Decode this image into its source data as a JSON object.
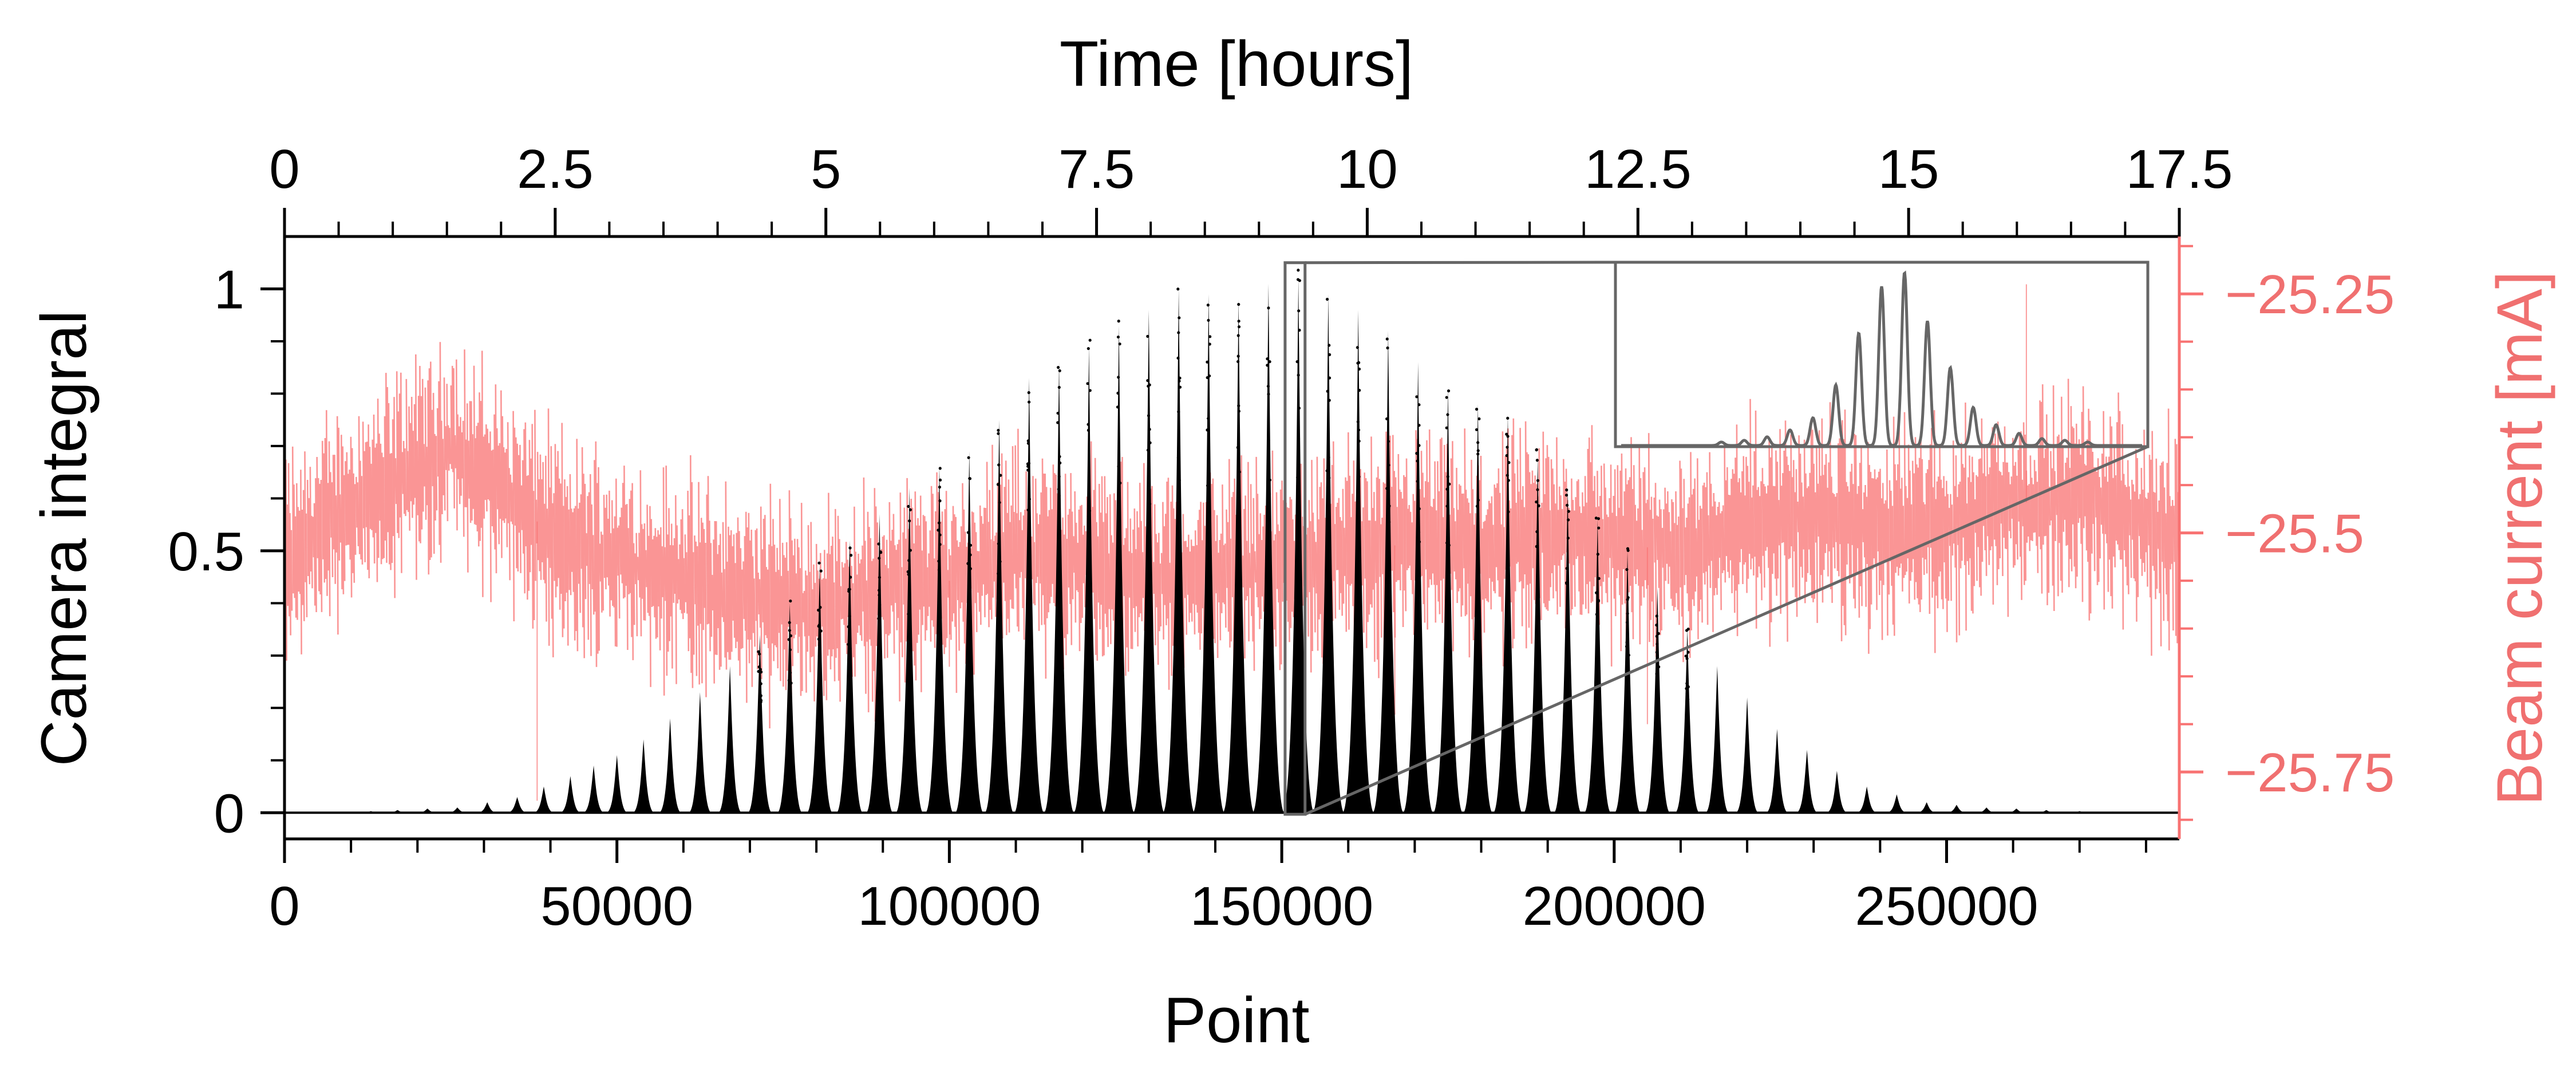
{
  "chart_data": {
    "type": "scatter",
    "xlabel": "Point",
    "ylabel": "Camera integral",
    "top_xlabel": "Time [hours]",
    "right_ylabel": "Beam current [mA]",
    "xlim": [
      0,
      285000
    ],
    "ylim": [
      -0.05,
      1.1
    ],
    "top_xlim": [
      0,
      17.5
    ],
    "right_ylim": [
      -25.82,
      -25.19
    ],
    "x_ticks": [
      "0",
      "50000",
      "100000",
      "150000",
      "200000",
      "250000"
    ],
    "y_ticks": [
      "0",
      "0.5",
      "1"
    ],
    "top_x_ticks": [
      "0",
      "2.5",
      "5",
      "7.5",
      "10",
      "12.5",
      "15",
      "17.5"
    ],
    "right_y_ticks": [
      "−25.25",
      "−25.5",
      "−25.75"
    ],
    "colors": {
      "camera": "#000000",
      "beam": "#f87272",
      "inset": "#666666"
    },
    "series": [
      {
        "name": "Camera integral",
        "description_points": "fringe peaks (x = point, y = peak camera integral)",
        "x": [
          4000,
          8500,
          13000,
          17000,
          21500,
          26000,
          30500,
          35000,
          39000,
          43000,
          46500,
          50000,
          54000,
          58000,
          62500,
          67000,
          71500,
          76000,
          80500,
          85000,
          89500,
          94000,
          98500,
          103000,
          107500,
          112000,
          116500,
          121000,
          125500,
          130000,
          134500,
          139000,
          143500,
          148000,
          152500,
          157000,
          161500,
          166000,
          170500,
          175000,
          179500,
          184000,
          188500,
          193000,
          197500,
          202000,
          206500,
          211000,
          215500,
          220000,
          224500,
          229000,
          233500,
          238000,
          242500,
          247000,
          251500,
          256000,
          260500,
          265000,
          270000,
          275000
        ],
        "y": [
          0.0,
          0.0,
          0.003,
          0.005,
          0.008,
          0.01,
          0.02,
          0.03,
          0.05,
          0.07,
          0.09,
          0.11,
          0.14,
          0.18,
          0.23,
          0.28,
          0.34,
          0.4,
          0.47,
          0.52,
          0.57,
          0.62,
          0.66,
          0.69,
          0.75,
          0.83,
          0.86,
          0.89,
          0.93,
          0.96,
          1.0,
          0.99,
          0.98,
          1.01,
          1.02,
          0.99,
          0.96,
          0.92,
          0.86,
          0.81,
          0.78,
          0.76,
          0.68,
          0.62,
          0.56,
          0.5,
          0.43,
          0.35,
          0.28,
          0.22,
          0.16,
          0.12,
          0.08,
          0.05,
          0.035,
          0.02,
          0.015,
          0.01,
          0.008,
          0.005,
          0.003,
          0.002
        ]
      },
      {
        "name": "Beam current",
        "x": [
          0,
          10000,
          20000,
          25000,
          30000,
          40000,
          50000,
          60000,
          70000,
          80000,
          90000,
          100000,
          110000,
          120000,
          130000,
          140000,
          150000,
          160000,
          170000,
          180000,
          190000,
          200000,
          210000,
          220000,
          230000,
          240000,
          250000,
          260000,
          270000,
          280000,
          285000
        ],
        "y": [
          -25.53,
          -25.47,
          -25.43,
          -25.41,
          -25.44,
          -25.5,
          -25.53,
          -25.55,
          -25.57,
          -25.58,
          -25.56,
          -25.55,
          -25.52,
          -25.53,
          -25.55,
          -25.54,
          -25.53,
          -25.52,
          -25.51,
          -25.52,
          -25.5,
          -25.51,
          -25.52,
          -25.49,
          -25.48,
          -25.5,
          -25.49,
          -25.47,
          -25.46,
          -25.49,
          -25.51
        ],
        "spread": 0.09
      }
    ],
    "inset": {
      "zoom_xlim": [
        150500,
        153500
      ],
      "peaks": [
        0.02,
        0.03,
        0.05,
        0.09,
        0.16,
        0.35,
        0.65,
        0.92,
        1.0,
        0.72,
        0.45,
        0.22,
        0.12,
        0.07,
        0.04,
        0.03,
        0.02
      ]
    }
  }
}
